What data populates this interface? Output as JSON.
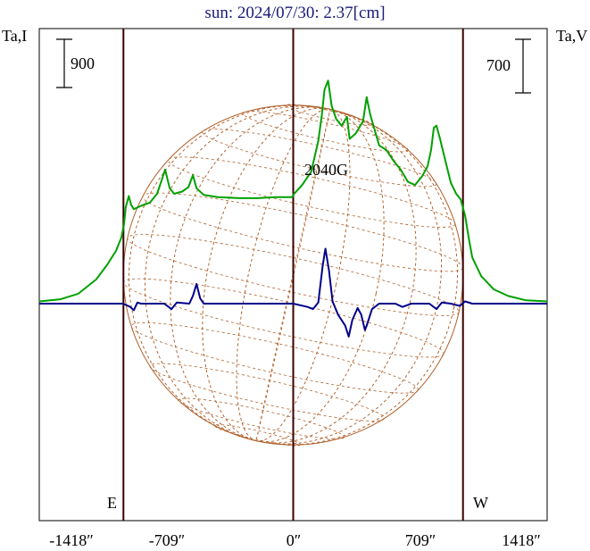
{
  "title": "sun: 2024/07/30: 2.37[cm]",
  "left_axis_label": "Ta,I",
  "right_axis_label": "Ta,V",
  "scale_bar_left": "900",
  "scale_bar_right": "700",
  "annotation": "2040G",
  "limb_labels": {
    "east": "E",
    "west": "W"
  },
  "colors": {
    "total_intensity": "#00a000",
    "circular_polarization": "#00008b",
    "solar_disk": "#b0602a",
    "frame": "#000000",
    "vertical_lines": "#3a0000"
  },
  "chart_data": {
    "type": "line",
    "title": "sun: 2024/07/30: 2.37[cm]",
    "xlabel": "",
    "ylabel": "Ta,I",
    "ylabel_right": "Ta,V",
    "x_ticks": [
      "-1418″",
      "-709″",
      "0″",
      "709″",
      "1418″"
    ],
    "xlim": [
      -1418,
      1418
    ],
    "vertical_markers": [
      -948,
      0,
      948
    ],
    "solar_radius_arcsec": 948,
    "series": [
      {
        "name": "Ta,I",
        "color": "#00a000",
        "points": [
          [
            -1418,
            0.02
          ],
          [
            -1300,
            0.04
          ],
          [
            -1200,
            0.09
          ],
          [
            -1100,
            0.22
          ],
          [
            -1040,
            0.35
          ],
          [
            -990,
            0.48
          ],
          [
            -960,
            0.6
          ],
          [
            -945,
            0.72
          ],
          [
            -935,
            0.88
          ],
          [
            -918,
            0.98
          ],
          [
            -905,
            0.9
          ],
          [
            -890,
            0.86
          ],
          [
            -850,
            0.89
          ],
          [
            -800,
            0.92
          ],
          [
            -760,
            1.0
          ],
          [
            -735,
            1.12
          ],
          [
            -715,
            1.22
          ],
          [
            -690,
            1.05
          ],
          [
            -665,
            1.0
          ],
          [
            -620,
            1.02
          ],
          [
            -585,
            1.06
          ],
          [
            -560,
            1.17
          ],
          [
            -540,
            1.05
          ],
          [
            -500,
            0.99
          ],
          [
            -420,
            0.97
          ],
          [
            -300,
            0.96
          ],
          [
            -200,
            0.96
          ],
          [
            -100,
            0.97
          ],
          [
            -5,
            0.97
          ],
          [
            0,
            0.99
          ],
          [
            50,
            1.08
          ],
          [
            100,
            1.2
          ],
          [
            140,
            1.48
          ],
          [
            160,
            1.72
          ],
          [
            175,
            1.95
          ],
          [
            195,
            2.03
          ],
          [
            215,
            1.8
          ],
          [
            240,
            1.68
          ],
          [
            270,
            1.62
          ],
          [
            300,
            1.7
          ],
          [
            315,
            1.5
          ],
          [
            350,
            1.55
          ],
          [
            390,
            1.66
          ],
          [
            410,
            1.88
          ],
          [
            430,
            1.72
          ],
          [
            480,
            1.44
          ],
          [
            520,
            1.4
          ],
          [
            560,
            1.3
          ],
          [
            600,
            1.22
          ],
          [
            640,
            1.11
          ],
          [
            680,
            1.08
          ],
          [
            720,
            1.16
          ],
          [
            750,
            1.25
          ],
          [
            770,
            1.4
          ],
          [
            785,
            1.6
          ],
          [
            800,
            1.62
          ],
          [
            820,
            1.5
          ],
          [
            850,
            1.3
          ],
          [
            880,
            1.1
          ],
          [
            910,
            1.0
          ],
          [
            935,
            0.95
          ],
          [
            960,
            0.8
          ],
          [
            980,
            0.6
          ],
          [
            1000,
            0.42
          ],
          [
            1050,
            0.25
          ],
          [
            1120,
            0.13
          ],
          [
            1200,
            0.07
          ],
          [
            1300,
            0.03
          ],
          [
            1418,
            0.02
          ]
        ]
      },
      {
        "name": "Ta,V",
        "color": "#00008b",
        "points": [
          [
            -1418,
            0.0
          ],
          [
            -1250,
            0.0
          ],
          [
            -1120,
            0.0
          ],
          [
            -1050,
            0.0
          ],
          [
            -950,
            0.0
          ],
          [
            -910,
            -0.03
          ],
          [
            -890,
            -0.06
          ],
          [
            -870,
            0.01
          ],
          [
            -850,
            0.0
          ],
          [
            -720,
            0.0
          ],
          [
            -680,
            -0.05
          ],
          [
            -650,
            0.01
          ],
          [
            -580,
            0.0
          ],
          [
            -560,
            0.07
          ],
          [
            -540,
            0.18
          ],
          [
            -520,
            0.05
          ],
          [
            -500,
            0.0
          ],
          [
            -300,
            0.0
          ],
          [
            -100,
            0.0
          ],
          [
            0,
            0.0
          ],
          [
            80,
            -0.03
          ],
          [
            110,
            -0.05
          ],
          [
            140,
            0.01
          ],
          [
            165,
            0.35
          ],
          [
            180,
            0.5
          ],
          [
            200,
            0.3
          ],
          [
            220,
            0.02
          ],
          [
            250,
            -0.1
          ],
          [
            270,
            -0.15
          ],
          [
            290,
            -0.2
          ],
          [
            310,
            -0.3
          ],
          [
            330,
            -0.15
          ],
          [
            360,
            -0.04
          ],
          [
            380,
            -0.1
          ],
          [
            400,
            -0.24
          ],
          [
            410,
            -0.2
          ],
          [
            440,
            -0.05
          ],
          [
            480,
            0.0
          ],
          [
            530,
            0.0
          ],
          [
            570,
            0.0
          ],
          [
            610,
            -0.03
          ],
          [
            660,
            0.0
          ],
          [
            720,
            0.0
          ],
          [
            760,
            0.0
          ],
          [
            800,
            -0.05
          ],
          [
            830,
            0.01
          ],
          [
            880,
            0.0
          ],
          [
            930,
            -0.02
          ],
          [
            960,
            0.02
          ],
          [
            1000,
            0.0
          ],
          [
            1100,
            0.0
          ],
          [
            1250,
            0.0
          ],
          [
            1418,
            0.0
          ]
        ]
      }
    ],
    "grid": false
  }
}
